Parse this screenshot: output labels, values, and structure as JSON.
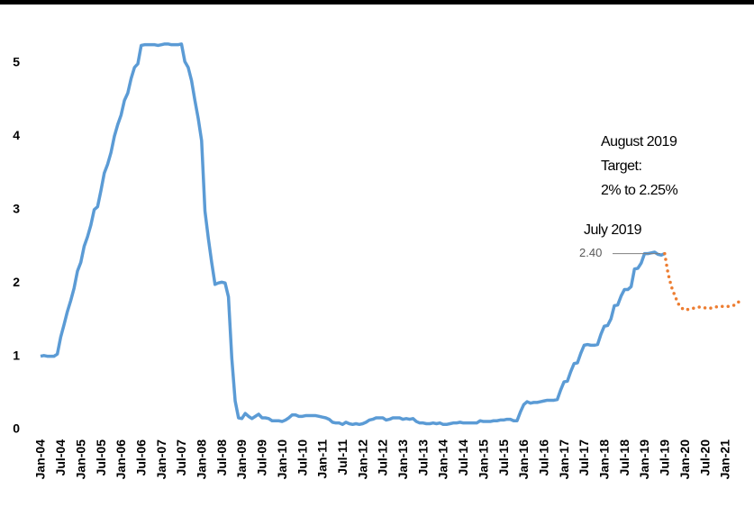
{
  "chart_data": {
    "type": "line",
    "categories": [
      "Jan-04",
      null,
      null,
      null,
      null,
      null,
      "Jul-04",
      null,
      null,
      null,
      null,
      null,
      "Jan-05",
      null,
      null,
      null,
      null,
      null,
      "Jul-05",
      null,
      null,
      null,
      null,
      null,
      "Jan-06",
      null,
      null,
      null,
      null,
      null,
      "Jul-06",
      null,
      null,
      null,
      null,
      null,
      "Jan-07",
      null,
      null,
      null,
      null,
      null,
      "Jul-07",
      null,
      null,
      null,
      null,
      null,
      "Jan-08",
      null,
      null,
      null,
      null,
      null,
      "Jul-08",
      null,
      null,
      null,
      null,
      null,
      "Jan-09",
      null,
      null,
      null,
      null,
      null,
      "Jul-09",
      null,
      null,
      null,
      null,
      null,
      "Jan-10",
      null,
      null,
      null,
      null,
      null,
      "Jul-10",
      null,
      null,
      null,
      null,
      null,
      "Jan-11",
      null,
      null,
      null,
      null,
      null,
      "Jul-11",
      null,
      null,
      null,
      null,
      null,
      "Jan-12",
      null,
      null,
      null,
      null,
      null,
      "Jul-12",
      null,
      null,
      null,
      null,
      null,
      "Jan-13",
      null,
      null,
      null,
      null,
      null,
      "Jul-13",
      null,
      null,
      null,
      null,
      null,
      "Jan-14",
      null,
      null,
      null,
      null,
      null,
      "Jul-14",
      null,
      null,
      null,
      null,
      null,
      "Jan-15",
      null,
      null,
      null,
      null,
      null,
      "Jul-15",
      null,
      null,
      null,
      null,
      null,
      "Jan-16",
      null,
      null,
      null,
      null,
      null,
      "Jul-16",
      null,
      null,
      null,
      null,
      null,
      "Jan-17",
      null,
      null,
      null,
      null,
      null,
      "Jul-17",
      null,
      null,
      null,
      null,
      null,
      "Jan-18",
      null,
      null,
      null,
      null,
      null,
      "Jul-18",
      null,
      null,
      null,
      null,
      null,
      "Jan-19",
      null,
      null,
      null,
      null,
      null,
      "Jul-19",
      null,
      null,
      null,
      null,
      null,
      "Jan-20",
      null,
      null,
      null,
      null,
      null,
      "Jul-20",
      null,
      null,
      null,
      null,
      null,
      "Jan-21",
      null,
      null,
      null,
      null,
      null
    ],
    "series": [
      {
        "color": "#5b9bd5",
        "style": "solid",
        "values": [
          1.0,
          1.01,
          1.0,
          1.0,
          1.0,
          1.03,
          1.26,
          1.43,
          1.61,
          1.76,
          1.93,
          2.16,
          2.28,
          2.5,
          2.63,
          2.79,
          3.0,
          3.04,
          3.26,
          3.5,
          3.62,
          3.78,
          4.0,
          4.16,
          4.29,
          4.49,
          4.59,
          4.79,
          4.94,
          4.99,
          5.24,
          5.25,
          5.25,
          5.25,
          5.25,
          5.24,
          5.25,
          5.26,
          5.26,
          5.25,
          5.25,
          5.25,
          5.26,
          5.02,
          4.94,
          4.76,
          4.49,
          4.24,
          3.94,
          2.98,
          2.61,
          2.28,
          1.98,
          2.0,
          2.01,
          2.0,
          1.81,
          0.97,
          0.39,
          0.16,
          0.15,
          0.22,
          0.18,
          0.15,
          0.18,
          0.21,
          0.16,
          0.16,
          0.15,
          0.12,
          0.12,
          0.12,
          0.11,
          0.13,
          0.16,
          0.2,
          0.2,
          0.18,
          0.18,
          0.19,
          0.19,
          0.19,
          0.19,
          0.18,
          0.17,
          0.16,
          0.14,
          0.1,
          0.09,
          0.09,
          0.07,
          0.1,
          0.08,
          0.07,
          0.08,
          0.07,
          0.08,
          0.1,
          0.13,
          0.14,
          0.16,
          0.16,
          0.16,
          0.13,
          0.14,
          0.16,
          0.16,
          0.16,
          0.14,
          0.15,
          0.14,
          0.15,
          0.11,
          0.09,
          0.09,
          0.08,
          0.08,
          0.09,
          0.08,
          0.09,
          0.07,
          0.07,
          0.08,
          0.09,
          0.09,
          0.1,
          0.09,
          0.09,
          0.09,
          0.09,
          0.09,
          0.12,
          0.11,
          0.11,
          0.11,
          0.12,
          0.12,
          0.13,
          0.13,
          0.14,
          0.14,
          0.12,
          0.12,
          0.24,
          0.34,
          0.38,
          0.36,
          0.37,
          0.37,
          0.38,
          0.39,
          0.4,
          0.4,
          0.4,
          0.41,
          0.54,
          0.65,
          0.66,
          0.79,
          0.9,
          0.91,
          1.04,
          1.15,
          1.16,
          1.15,
          1.15,
          1.16,
          1.3,
          1.41,
          1.42,
          1.51,
          1.69,
          1.7,
          1.82,
          1.91,
          1.91,
          1.95,
          2.19,
          2.2,
          2.27,
          2.4,
          2.4,
          2.41,
          2.42,
          2.39,
          2.38,
          2.4,
          null,
          null,
          null,
          null,
          null,
          null,
          null,
          null,
          null,
          null,
          null,
          null,
          null,
          null,
          null,
          null,
          null,
          null,
          null,
          null,
          null,
          null,
          null
        ]
      },
      {
        "color": "#ed7d31",
        "style": "dotted",
        "values": [
          null,
          null,
          null,
          null,
          null,
          null,
          null,
          null,
          null,
          null,
          null,
          null,
          null,
          null,
          null,
          null,
          null,
          null,
          null,
          null,
          null,
          null,
          null,
          null,
          null,
          null,
          null,
          null,
          null,
          null,
          null,
          null,
          null,
          null,
          null,
          null,
          null,
          null,
          null,
          null,
          null,
          null,
          null,
          null,
          null,
          null,
          null,
          null,
          null,
          null,
          null,
          null,
          null,
          null,
          null,
          null,
          null,
          null,
          null,
          null,
          null,
          null,
          null,
          null,
          null,
          null,
          null,
          null,
          null,
          null,
          null,
          null,
          null,
          null,
          null,
          null,
          null,
          null,
          null,
          null,
          null,
          null,
          null,
          null,
          null,
          null,
          null,
          null,
          null,
          null,
          null,
          null,
          null,
          null,
          null,
          null,
          null,
          null,
          null,
          null,
          null,
          null,
          null,
          null,
          null,
          null,
          null,
          null,
          null,
          null,
          null,
          null,
          null,
          null,
          null,
          null,
          null,
          null,
          null,
          null,
          null,
          null,
          null,
          null,
          null,
          null,
          null,
          null,
          null,
          null,
          null,
          null,
          null,
          null,
          null,
          null,
          null,
          null,
          null,
          null,
          null,
          null,
          null,
          null,
          null,
          null,
          null,
          null,
          null,
          null,
          null,
          null,
          null,
          null,
          null,
          null,
          null,
          null,
          null,
          null,
          null,
          null,
          null,
          null,
          null,
          null,
          null,
          null,
          null,
          null,
          null,
          null,
          null,
          null,
          null,
          null,
          null,
          null,
          null,
          null,
          null,
          null,
          null,
          null,
          null,
          null,
          2.4,
          2.13,
          1.95,
          1.83,
          1.72,
          1.66,
          1.63,
          1.64,
          1.65,
          1.66,
          1.67,
          1.67,
          1.66,
          1.65,
          1.66,
          1.67,
          1.68,
          1.68,
          1.68,
          1.68,
          1.69,
          1.7,
          1.74,
          1.78
        ]
      }
    ],
    "ylim": [
      0,
      5.5
    ],
    "yticks": [
      0,
      1,
      2,
      3,
      4,
      5
    ],
    "grid": false,
    "annotations": [
      "August 2019",
      "Target:",
      "2% to 2.25%",
      "July 2019"
    ],
    "point_label": {
      "value": 2.4,
      "label": "2.40"
    }
  }
}
